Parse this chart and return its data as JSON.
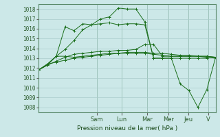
{
  "background_color": "#cce8e8",
  "grid_color": "#aacccc",
  "line_color": "#1a6e1a",
  "xlabel": "Pression niveau de la mer( hPa )",
  "ylim": [
    1007.5,
    1018.5
  ],
  "yticks": [
    1008,
    1009,
    1010,
    1011,
    1012,
    1013,
    1014,
    1015,
    1016,
    1017,
    1018
  ],
  "day_labels": [
    "Sam",
    "Lun",
    "Mar",
    "Mer",
    "Jeu",
    "V"
  ],
  "day_x": [
    0.33,
    0.47,
    0.615,
    0.735,
    0.845,
    0.96
  ],
  "series": [
    [
      1011.8,
      1012.4,
      1013.2,
      1016.2,
      1015.8,
      1016.5,
      1016.4,
      1017.0,
      1017.2,
      1018.1,
      1018.0,
      1018.0,
      1016.7,
      1013.0,
      1013.0,
      1013.0,
      1010.4,
      1009.7,
      1008.0,
      1009.8,
      1013.1
    ],
    [
      1011.8,
      1012.3,
      1013.2,
      1013.2,
      1013.1,
      1013.2,
      1013.3,
      1013.4,
      1013.5,
      1013.5,
      1013.5,
      1013.5,
      1013.5,
      1013.4,
      1013.3,
      1013.2,
      1013.2,
      1013.2,
      1013.2,
      1013.2,
      1013.1
    ],
    [
      1011.8,
      1012.4,
      1012.6,
      1012.8,
      1013.0,
      1013.1,
      1013.2,
      1013.3,
      1013.4,
      1013.5,
      1013.6,
      1013.6,
      1013.6,
      1013.5,
      1013.5,
      1013.4,
      1013.3,
      1013.3,
      1013.2,
      1013.1,
      1013.0
    ],
    [
      1011.8,
      1012.3,
      1012.7,
      1013.1,
      1013.4,
      1013.5,
      1013.6,
      1013.7,
      1013.7,
      1013.8,
      1013.8,
      1013.9,
      1014.4,
      1014.4,
      1013.2,
      1013.2,
      1013.2,
      1013.2,
      1013.2,
      1013.2,
      1013.1
    ],
    [
      1011.8,
      1012.4,
      1013.2,
      1013.9,
      1014.8,
      1015.9,
      1016.4,
      1016.5,
      1016.6,
      1016.4,
      1016.5,
      1016.5,
      1016.4,
      1013.0,
      1013.0,
      1013.0,
      1013.0,
      1013.0,
      1013.0,
      1013.0,
      1013.1
    ]
  ]
}
